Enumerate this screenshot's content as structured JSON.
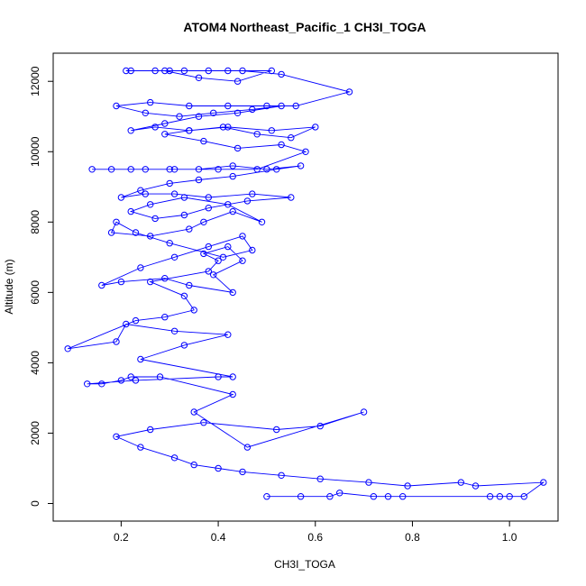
{
  "chart_data": {
    "type": "line",
    "title": "ATOM4 Northeast_Pacific_1 CH3I_TOGA",
    "xlabel": "CH3I_TOGA",
    "ylabel": "Altitude (m)",
    "xlim": [
      0.06,
      1.1
    ],
    "ylim": [
      -500,
      12800
    ],
    "xticks": [
      0.2,
      0.4,
      0.6,
      0.8,
      1.0
    ],
    "xtick_labels": [
      "0.2",
      "0.4",
      "0.6",
      "0.8",
      "1.0"
    ],
    "yticks": [
      0,
      2000,
      4000,
      6000,
      8000,
      10000,
      12000
    ],
    "ytick_labels": [
      "0",
      "2000",
      "4000",
      "6000",
      "8000",
      "10000",
      "12000"
    ],
    "grid": false,
    "color": "#0000ff",
    "marker": "open-circle",
    "series": [
      {
        "x": [
          0.5,
          0.57,
          0.63,
          0.65,
          0.72,
          0.75,
          0.78,
          0.96,
          0.98,
          1.0,
          1.03,
          1.07,
          0.93,
          0.9,
          0.79,
          0.71,
          0.61,
          0.53,
          0.45,
          0.4,
          0.35,
          0.31,
          0.24,
          0.19,
          0.26,
          0.37,
          0.52,
          0.61,
          0.7,
          0.46,
          0.35,
          0.43,
          0.28,
          0.22,
          0.2,
          0.16,
          0.13,
          0.23,
          0.4,
          0.43,
          0.24,
          0.33,
          0.42,
          0.31,
          0.21,
          0.19,
          0.09,
          0.23,
          0.29,
          0.35,
          0.33,
          0.26,
          0.38,
          0.4,
          0.37,
          0.42,
          0.45,
          0.39,
          0.43,
          0.34,
          0.29,
          0.2,
          0.16,
          0.24,
          0.31,
          0.38,
          0.45,
          0.47,
          0.41,
          0.3,
          0.23,
          0.19,
          0.18,
          0.26,
          0.34,
          0.37,
          0.43,
          0.49,
          0.42,
          0.33,
          0.26,
          0.22,
          0.27,
          0.33,
          0.38,
          0.46,
          0.55,
          0.47,
          0.38,
          0.31,
          0.25,
          0.2,
          0.24,
          0.3,
          0.36,
          0.43,
          0.52,
          0.57,
          0.5,
          0.43,
          0.36,
          0.3,
          0.25,
          0.18,
          0.14,
          0.22,
          0.31,
          0.4,
          0.48,
          0.58,
          0.53,
          0.44,
          0.37,
          0.29,
          0.34,
          0.42,
          0.51,
          0.6,
          0.55,
          0.48,
          0.41,
          0.34,
          0.27,
          0.22,
          0.29,
          0.36,
          0.44,
          0.53,
          0.47,
          0.39,
          0.32,
          0.25,
          0.19,
          0.26,
          0.34,
          0.42,
          0.5,
          0.56,
          0.67,
          0.53,
          0.45,
          0.38,
          0.3,
          0.22,
          0.29,
          0.36,
          0.44,
          0.51,
          0.42,
          0.33,
          0.27,
          0.21
        ],
        "y": [
          200,
          200,
          200,
          300,
          200,
          200,
          200,
          200,
          200,
          200,
          200,
          600,
          500,
          600,
          500,
          600,
          700,
          800,
          900,
          1000,
          1100,
          1300,
          1600,
          1900,
          2100,
          2300,
          2100,
          2200,
          2600,
          1600,
          2600,
          3100,
          3600,
          3600,
          3500,
          3400,
          3400,
          3500,
          3600,
          3600,
          4100,
          4500,
          4800,
          4900,
          5100,
          4600,
          4400,
          5200,
          5300,
          5500,
          5900,
          6300,
          6600,
          6900,
          7100,
          7300,
          6900,
          6500,
          6000,
          6200,
          6400,
          6300,
          6200,
          6700,
          7000,
          7300,
          7600,
          7200,
          7000,
          7400,
          7700,
          8000,
          7700,
          7600,
          7800,
          8000,
          8300,
          8000,
          8500,
          8700,
          8500,
          8300,
          8100,
          8200,
          8400,
          8600,
          8700,
          8800,
          8700,
          8800,
          8800,
          8700,
          8900,
          9100,
          9200,
          9300,
          9500,
          9600,
          9500,
          9600,
          9500,
          9500,
          9500,
          9500,
          9500,
          9500,
          9500,
          9500,
          9500,
          10000,
          10200,
          10100,
          10300,
          10500,
          10600,
          10700,
          10600,
          10700,
          10400,
          10500,
          10700,
          10600,
          10700,
          10600,
          10800,
          11000,
          11100,
          11300,
          11200,
          11100,
          11000,
          11100,
          11300,
          11400,
          11300,
          11300,
          11300,
          11300,
          11700,
          12200,
          12300,
          12300,
          12300,
          12300,
          12300,
          12100,
          12000,
          12300,
          12300,
          12300,
          12300,
          12300
        ]
      }
    ]
  }
}
